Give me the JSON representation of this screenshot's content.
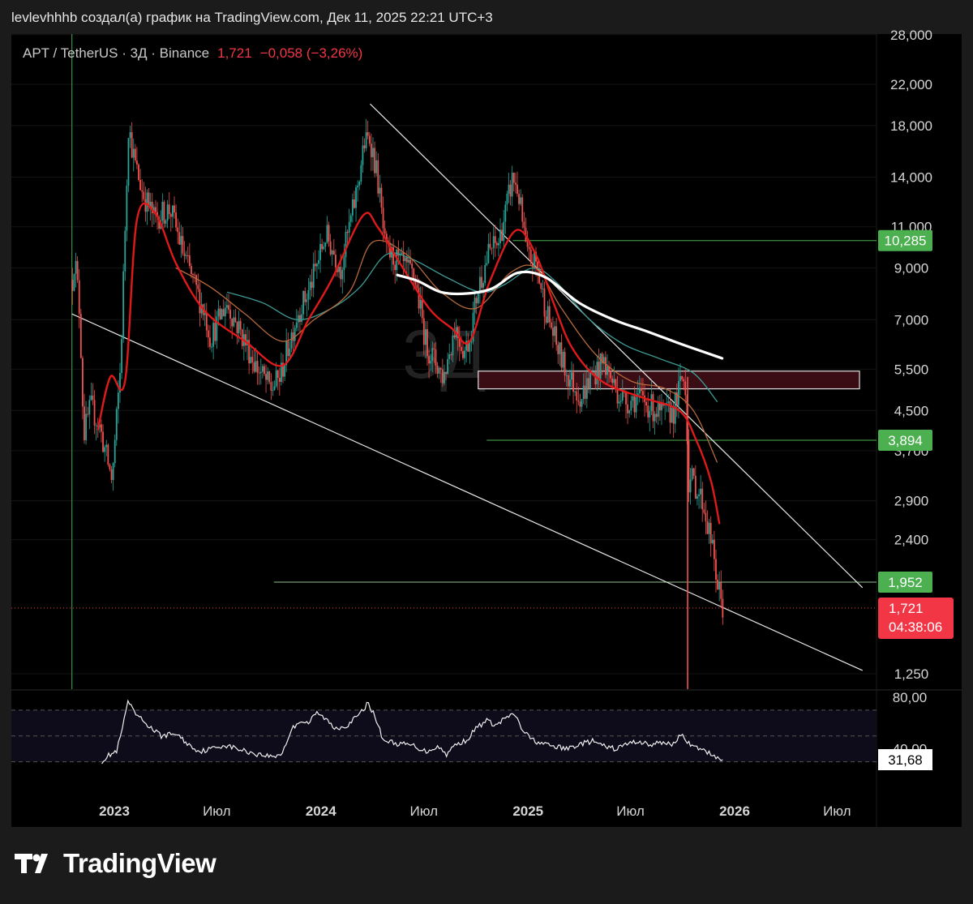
{
  "header": {
    "text": "levlevhhhb создал(а) график на TradingView.com, Дек 11, 2025 22:21 UTC+3"
  },
  "symbol": {
    "pair": "APT / TetherUS · 3Д · Binance",
    "last": "1,721",
    "change": "−0,058 (−3,26%)"
  },
  "watermark": "3Д",
  "brand": {
    "name": "TradingView",
    "logo_icon": "tradingview-logo-icon"
  },
  "colors": {
    "up": "#26a69a",
    "down": "#ef5350",
    "ema_red": "#e01a1a",
    "ma_brown": "#b86a3c",
    "ma_teal": "#3d9c96",
    "ma_white": "#ffffff",
    "level_green": "#4caf50",
    "price_label_red": "#f23645"
  },
  "chart_data": [
    {
      "type": "candlestick",
      "title": "",
      "y_axis": {
        "scale": "log",
        "tick_labels": [
          "28,000",
          "22,000",
          "18,000",
          "14,000",
          "11,000",
          "9,000",
          "7,000",
          "5,500",
          "4,500",
          "3,700",
          "2,900",
          "2,400",
          "1,250"
        ],
        "tick_values": [
          28,
          22,
          18,
          14,
          11,
          9,
          7,
          5.5,
          4.5,
          3.7,
          2.9,
          2.4,
          1.25
        ]
      },
      "x_axis": {
        "tick_labels": [
          "2023",
          "Июл",
          "2024",
          "Июл",
          "2025",
          "Июл",
          "2026",
          "Июл"
        ],
        "tick_dates": [
          "2023-01-01",
          "2023-07-01",
          "2024-01-01",
          "2024-07-01",
          "2025-01-01",
          "2025-07-01",
          "2026-01-01",
          "2026-07-01"
        ]
      },
      "price_path": [
        [
          "2022-10-19",
          8.5
        ],
        [
          "2022-10-23",
          9.6
        ],
        [
          "2022-11-01",
          7.2
        ],
        [
          "2022-11-08",
          4.0
        ],
        [
          "2022-11-20",
          4.6
        ],
        [
          "2022-12-05",
          4.2
        ],
        [
          "2022-12-28",
          3.2
        ],
        [
          "2023-01-12",
          5.6
        ],
        [
          "2023-01-22",
          13.0
        ],
        [
          "2023-01-26",
          18.0
        ],
        [
          "2023-02-06",
          15.0
        ],
        [
          "2023-02-20",
          13.0
        ],
        [
          "2023-03-12",
          11.5
        ],
        [
          "2023-04-10",
          12.0
        ],
        [
          "2023-05-05",
          9.5
        ],
        [
          "2023-06-10",
          7.2
        ],
        [
          "2023-06-20",
          6.4
        ],
        [
          "2023-07-18",
          7.6
        ],
        [
          "2023-08-12",
          6.6
        ],
        [
          "2023-09-08",
          5.6
        ],
        [
          "2023-10-05",
          5.0
        ],
        [
          "2023-10-21",
          5.3
        ],
        [
          "2023-11-05",
          6.2
        ],
        [
          "2023-11-20",
          7.2
        ],
        [
          "2023-12-10",
          8.0
        ],
        [
          "2023-12-28",
          9.4
        ],
        [
          "2024-01-10",
          10.6
        ],
        [
          "2024-02-05",
          9.0
        ],
        [
          "2024-03-01",
          12.5
        ],
        [
          "2024-03-18",
          16.5
        ],
        [
          "2024-03-28",
          17.0
        ],
        [
          "2024-04-10",
          14.0
        ],
        [
          "2024-04-24",
          9.8
        ],
        [
          "2024-05-20",
          9.2
        ],
        [
          "2024-06-15",
          8.6
        ],
        [
          "2024-07-05",
          6.2
        ],
        [
          "2024-08-05",
          5.3
        ],
        [
          "2024-08-25",
          6.8
        ],
        [
          "2024-09-10",
          6.0
        ],
        [
          "2024-09-20",
          6.4
        ],
        [
          "2024-10-05",
          8.2
        ],
        [
          "2024-10-25",
          9.8
        ],
        [
          "2024-11-10",
          10.2
        ],
        [
          "2024-11-22",
          11.8
        ],
        [
          "2024-12-05",
          14.0
        ],
        [
          "2024-12-15",
          13.0
        ],
        [
          "2024-12-30",
          9.5
        ],
        [
          "2025-01-15",
          9.2
        ],
        [
          "2025-02-01",
          7.4
        ],
        [
          "2025-02-20",
          6.2
        ],
        [
          "2025-03-10",
          5.4
        ],
        [
          "2025-04-05",
          4.8
        ],
        [
          "2025-04-22",
          5.3
        ],
        [
          "2025-05-15",
          5.7
        ],
        [
          "2025-06-05",
          5.0
        ],
        [
          "2025-06-22",
          4.7
        ],
        [
          "2025-07-15",
          4.8
        ],
        [
          "2025-08-05",
          4.6
        ],
        [
          "2025-08-25",
          4.4
        ],
        [
          "2025-09-15",
          4.5
        ],
        [
          "2025-10-01",
          5.3
        ],
        [
          "2025-10-08",
          5.0
        ],
        [
          "2025-10-10",
          3.2
        ],
        [
          "2025-10-20",
          3.2
        ],
        [
          "2025-11-05",
          2.9
        ],
        [
          "2025-11-20",
          2.4
        ],
        [
          "2025-12-01",
          1.95
        ],
        [
          "2025-12-11",
          1.721
        ]
      ],
      "wicks": [
        {
          "date": "2025-10-10",
          "high": 5.3,
          "low": 1.1
        }
      ],
      "moving_averages": [
        {
          "color": "red",
          "points": [
            [
              "2022-12-03",
              4.1
            ],
            [
              "2022-12-25",
              5.3
            ],
            [
              "2023-01-20",
              5.2
            ],
            [
              "2023-02-10",
              11.4
            ],
            [
              "2023-03-15",
              11.7
            ],
            [
              "2023-04-20",
              9.2
            ],
            [
              "2023-06-10",
              7.3
            ],
            [
              "2023-08-20",
              6.3
            ],
            [
              "2023-10-25",
              5.6
            ],
            [
              "2023-12-10",
              7.0
            ],
            [
              "2024-01-20",
              8.5
            ],
            [
              "2024-03-15",
              11.6
            ],
            [
              "2024-04-10",
              11.0
            ],
            [
              "2024-05-20",
              9.2
            ],
            [
              "2024-07-10",
              7.4
            ],
            [
              "2024-08-20",
              6.7
            ],
            [
              "2024-09-20",
              6.3
            ],
            [
              "2024-10-25",
              8.4
            ],
            [
              "2024-12-10",
              10.8
            ],
            [
              "2025-01-15",
              9.6
            ],
            [
              "2025-02-15",
              7.6
            ],
            [
              "2025-03-20",
              6.1
            ],
            [
              "2025-05-10",
              5.2
            ],
            [
              "2025-07-20",
              4.8
            ],
            [
              "2025-09-25",
              4.5
            ],
            [
              "2025-10-25",
              3.9
            ],
            [
              "2025-11-20",
              3.2
            ],
            [
              "2025-12-05",
              2.6
            ]
          ]
        },
        {
          "color": "brown",
          "points": [
            [
              "2023-04-20",
              9.0
            ],
            [
              "2023-06-20",
              8.2
            ],
            [
              "2023-08-20",
              7.2
            ],
            [
              "2023-10-25",
              6.3
            ],
            [
              "2023-12-20",
              7.0
            ],
            [
              "2024-02-20",
              8.0
            ],
            [
              "2024-04-01",
              10.2
            ],
            [
              "2024-06-01",
              9.6
            ],
            [
              "2024-08-01",
              8.0
            ],
            [
              "2024-10-01",
              7.4
            ],
            [
              "2024-12-01",
              8.8
            ],
            [
              "2025-01-15",
              9.0
            ],
            [
              "2025-03-01",
              7.4
            ],
            [
              "2025-05-01",
              5.9
            ],
            [
              "2025-07-01",
              5.2
            ],
            [
              "2025-09-01",
              5.0
            ],
            [
              "2025-10-20",
              4.5
            ],
            [
              "2025-12-01",
              3.5
            ]
          ]
        },
        {
          "color": "teal",
          "points": [
            [
              "2023-07-20",
              8.0
            ],
            [
              "2023-09-20",
              7.6
            ],
            [
              "2023-11-20",
              7.0
            ],
            [
              "2024-01-20",
              7.4
            ],
            [
              "2024-03-10",
              8.2
            ],
            [
              "2024-04-25",
              9.6
            ],
            [
              "2024-06-10",
              9.4
            ],
            [
              "2024-08-10",
              8.6
            ],
            [
              "2024-10-10",
              8.0
            ],
            [
              "2024-11-20",
              8.3
            ],
            [
              "2025-01-10",
              9.0
            ],
            [
              "2025-02-20",
              8.4
            ],
            [
              "2025-04-20",
              7.0
            ],
            [
              "2025-06-20",
              6.2
            ],
            [
              "2025-08-20",
              5.8
            ],
            [
              "2025-10-20",
              5.4
            ],
            [
              "2025-12-01",
              4.7
            ]
          ]
        },
        {
          "color": "white",
          "points": [
            [
              "2024-05-15",
              8.7
            ],
            [
              "2024-06-20",
              8.45
            ],
            [
              "2024-08-01",
              8.0
            ],
            [
              "2024-09-15",
              7.95
            ],
            [
              "2024-10-30",
              8.15
            ],
            [
              "2024-12-15",
              8.8
            ],
            [
              "2025-02-01",
              8.6
            ],
            [
              "2025-04-01",
              7.6
            ],
            [
              "2025-06-01",
              7.0
            ],
            [
              "2025-08-01",
              6.6
            ],
            [
              "2025-10-01",
              6.2
            ],
            [
              "2025-12-10",
              5.8
            ]
          ]
        }
      ],
      "trendlines": [
        {
          "name": "upper",
          "from": [
            "2024-03-28",
            20.0
          ],
          "to": [
            "2026-08-15",
            1.9
          ]
        },
        {
          "name": "lower",
          "from": [
            "2022-10-18",
            7.2
          ],
          "to": [
            "2026-08-15",
            1.27
          ]
        }
      ],
      "levels": [
        {
          "label": "10,285",
          "value": 10.285,
          "from": "2024-12-05"
        },
        {
          "label": "3,894",
          "value": 3.894,
          "from": "2024-10-20"
        },
        {
          "label": "1,952",
          "value": 1.952,
          "from": "2023-10-10"
        }
      ],
      "zone": {
        "from": "2024-10-05",
        "to": "2026-08-01",
        "high": 5.45,
        "low": 5.0
      },
      "current_price": {
        "label": "1,721",
        "value": 1.721,
        "countdown": "04:38:06"
      },
      "vertical_marker": "2022-10-18"
    },
    {
      "type": "line",
      "title": "",
      "y_axis": {
        "tick_labels": [
          "80,00",
          "40,00"
        ],
        "tick_values": [
          80,
          40
        ],
        "bands": [
          70,
          50,
          30
        ]
      },
      "last_value": {
        "label": "31,68",
        "value": 31.68
      },
      "points": [
        [
          "2022-12-10",
          30.5
        ],
        [
          "2022-12-22",
          35
        ],
        [
          "2023-01-05",
          38
        ],
        [
          "2023-01-15",
          55
        ],
        [
          "2023-01-25",
          77
        ],
        [
          "2023-02-05",
          68
        ],
        [
          "2023-02-20",
          62
        ],
        [
          "2023-03-10",
          55
        ],
        [
          "2023-03-25",
          50
        ],
        [
          "2023-04-20",
          52
        ],
        [
          "2023-05-10",
          44
        ],
        [
          "2023-06-01",
          38
        ],
        [
          "2023-06-20",
          40
        ],
        [
          "2023-07-15",
          43
        ],
        [
          "2023-08-15",
          39
        ],
        [
          "2023-09-10",
          36
        ],
        [
          "2023-10-10",
          34
        ],
        [
          "2023-10-25",
          37
        ],
        [
          "2023-11-10",
          55
        ],
        [
          "2023-11-25",
          62
        ],
        [
          "2023-12-10",
          60
        ],
        [
          "2023-12-25",
          68
        ],
        [
          "2024-01-10",
          63
        ],
        [
          "2024-01-25",
          56
        ],
        [
          "2024-02-15",
          58
        ],
        [
          "2024-03-10",
          67
        ],
        [
          "2024-03-25",
          76
        ],
        [
          "2024-04-08",
          62
        ],
        [
          "2024-04-20",
          47
        ],
        [
          "2024-05-15",
          44
        ],
        [
          "2024-06-10",
          43
        ],
        [
          "2024-07-05",
          38
        ],
        [
          "2024-07-25",
          42
        ],
        [
          "2024-08-10",
          36
        ],
        [
          "2024-08-25",
          43
        ],
        [
          "2024-09-15",
          47
        ],
        [
          "2024-10-01",
          56
        ],
        [
          "2024-10-20",
          62
        ],
        [
          "2024-11-05",
          58
        ],
        [
          "2024-11-25",
          65
        ],
        [
          "2024-12-10",
          66
        ],
        [
          "2024-12-20",
          56
        ],
        [
          "2025-01-05",
          48
        ],
        [
          "2025-01-25",
          44
        ],
        [
          "2025-02-15",
          42
        ],
        [
          "2025-03-10",
          40
        ],
        [
          "2025-04-05",
          44
        ],
        [
          "2025-04-25",
          46
        ],
        [
          "2025-05-15",
          42
        ],
        [
          "2025-06-05",
          40
        ],
        [
          "2025-06-25",
          44
        ],
        [
          "2025-07-15",
          46
        ],
        [
          "2025-08-05",
          43
        ],
        [
          "2025-08-25",
          45
        ],
        [
          "2025-09-15",
          44
        ],
        [
          "2025-10-01",
          52
        ],
        [
          "2025-10-15",
          42
        ],
        [
          "2025-11-01",
          40
        ],
        [
          "2025-11-20",
          36
        ],
        [
          "2025-12-11",
          31.68
        ]
      ]
    }
  ]
}
